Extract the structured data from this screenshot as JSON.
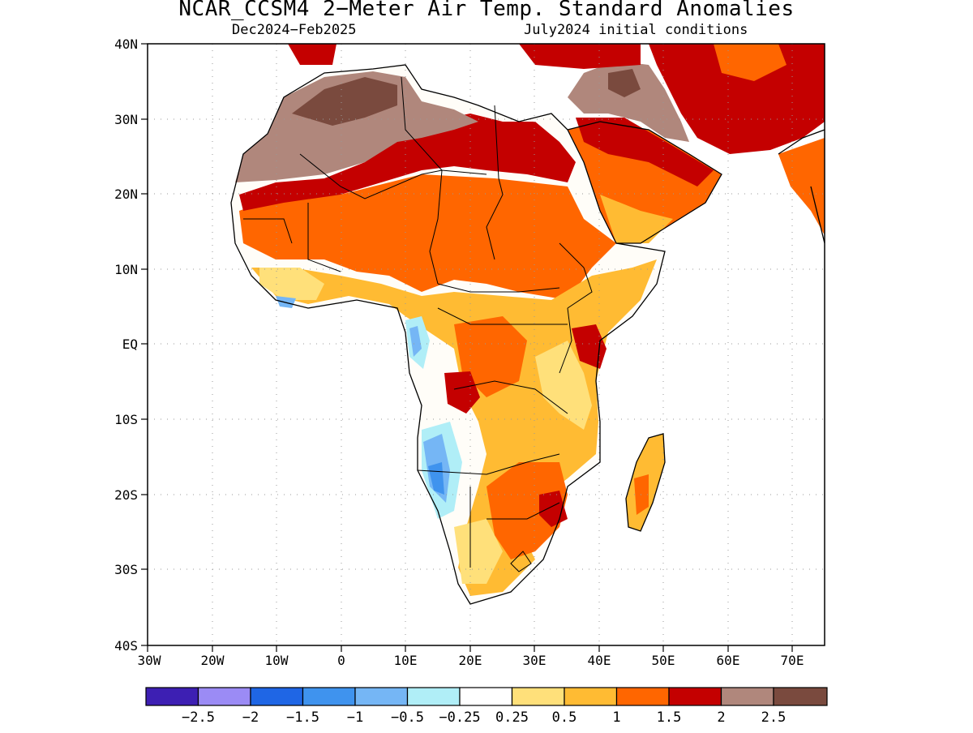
{
  "title": "NCAR_CCSM4 2−Meter Air Temp. Standard Anomalies",
  "subtitle_left": "Dec2024−Feb2025",
  "subtitle_right": "July2024 initial conditions",
  "map": {
    "region": "Africa",
    "variable": "2-meter air temperature standard anomaly",
    "lat_labels": [
      "40N",
      "30N",
      "20N",
      "10N",
      "EQ",
      "10S",
      "20S",
      "30S",
      "40S"
    ],
    "lon_labels": [
      "30W",
      "20W",
      "10W",
      "0",
      "10E",
      "20E",
      "30E",
      "40E",
      "50E",
      "60E",
      "70E"
    ],
    "gridlines": "dotted"
  },
  "legend": {
    "labels": [
      "−2.5",
      "−2",
      "−1.5",
      "−1",
      "−0.5",
      "−0.25",
      "0.25",
      "0.5",
      "1",
      "1.5",
      "2",
      "2.5"
    ],
    "colors": [
      "#3d1fb3",
      "#9b8bf5",
      "#1f66e5",
      "#3f93ee",
      "#75b6f5",
      "#b0eef7",
      "#ffffff",
      "#ffe07a",
      "#ffbb33",
      "#ff6600",
      "#c40000",
      "#b0877c",
      "#7a4a3e"
    ]
  },
  "colors": {
    "ocean": "#ffffff",
    "border": "#000000"
  }
}
